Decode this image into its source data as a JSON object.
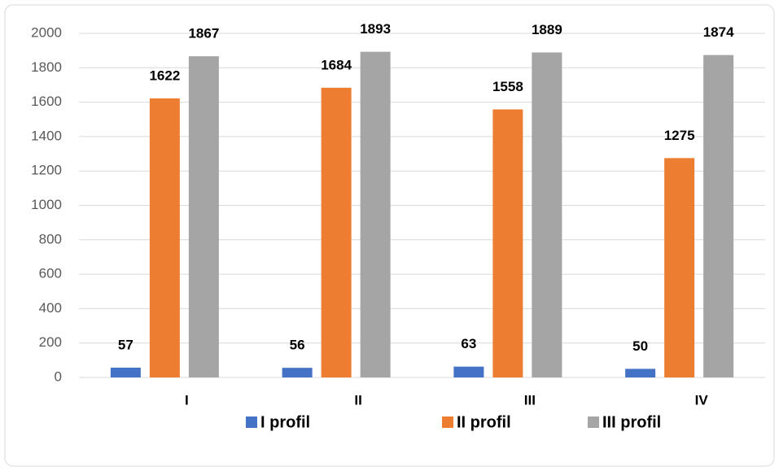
{
  "chart_data": {
    "type": "bar",
    "categories": [
      "I",
      "II",
      "III",
      "IV"
    ],
    "series": [
      {
        "name": "I profil",
        "color": "#4472c4",
        "values": [
          57,
          56,
          63,
          50
        ]
      },
      {
        "name": "II profil",
        "color": "#ed7d31",
        "values": [
          1622,
          1684,
          1558,
          1275
        ]
      },
      {
        "name": "III profil",
        "color": "#a5a5a5",
        "values": [
          1867,
          1893,
          1889,
          1874
        ]
      }
    ],
    "ylim": [
      0,
      2000
    ],
    "yticks": [
      0,
      200,
      400,
      600,
      800,
      1000,
      1200,
      1400,
      1600,
      1800,
      2000
    ],
    "grid": true,
    "legend": "bottom"
  }
}
